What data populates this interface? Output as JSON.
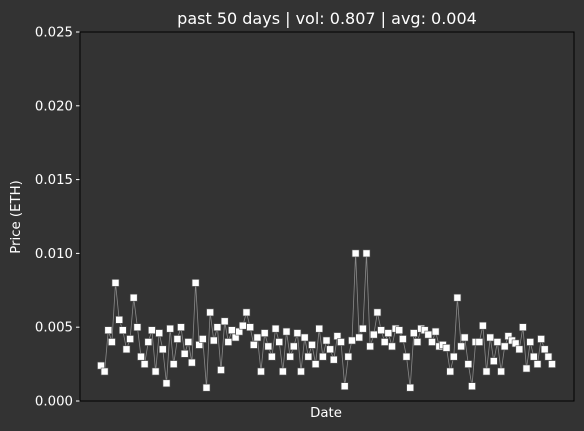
{
  "chart_data": {
    "type": "scatter",
    "title": "past 50 days | vol: 0.807 | avg: 0.004",
    "xlabel": "Date",
    "ylabel": "Price (ETH)",
    "ylim": [
      0,
      0.025
    ],
    "yticks": [
      "0.000",
      "0.005",
      "0.010",
      "0.015",
      "0.020",
      "0.025"
    ],
    "grid": false,
    "legend": "none",
    "colors": {
      "background": "#333333",
      "axes_frame": "#000000",
      "text": "#ffffff",
      "marker_fill": "#ffffff",
      "marker_edge": "#555555",
      "line": "#8a8a8a"
    },
    "series": [
      {
        "values": [
          0.0024,
          0.002,
          0.0048,
          0.004,
          0.008,
          0.0055,
          0.0048,
          0.0035,
          0.0042,
          0.007,
          0.005,
          0.003,
          0.0025,
          0.004,
          0.0048,
          0.002,
          0.0046,
          0.0035,
          0.0012,
          0.0049,
          0.0025,
          0.0042,
          0.005,
          0.0032,
          0.004,
          0.0026,
          0.008,
          0.0038,
          0.0042,
          0.0009,
          0.006,
          0.0041,
          0.005,
          0.0021,
          0.0054,
          0.004,
          0.0048,
          0.0043,
          0.0047,
          0.0051,
          0.006,
          0.005,
          0.0038,
          0.0043,
          0.002,
          0.0046,
          0.0037,
          0.003,
          0.0049,
          0.004,
          0.002,
          0.0047,
          0.003,
          0.0037,
          0.0046,
          0.002,
          0.0043,
          0.003,
          0.0038,
          0.0025,
          0.0049,
          0.003,
          0.0041,
          0.0035,
          0.0028,
          0.0044,
          0.004,
          0.001,
          0.003,
          0.0041,
          0.01,
          0.0043,
          0.0049,
          0.01,
          0.0037,
          0.0045,
          0.006,
          0.0048,
          0.004,
          0.0046,
          0.0037,
          0.0049,
          0.0048,
          0.0042,
          0.003,
          0.0009,
          0.0046,
          0.004,
          0.0049,
          0.0048,
          0.0045,
          0.004,
          0.0047,
          0.0037,
          0.0038,
          0.0036,
          0.002,
          0.003,
          0.007,
          0.0037,
          0.0043,
          0.0025,
          0.001,
          0.004,
          0.004,
          0.0051,
          0.002,
          0.0043,
          0.0027,
          0.004,
          0.002,
          0.0037,
          0.0044,
          0.0041,
          0.0039,
          0.0035,
          0.005,
          0.0022,
          0.004,
          0.003,
          0.0025,
          0.0042,
          0.0035,
          0.003,
          0.0025
        ]
      }
    ]
  }
}
